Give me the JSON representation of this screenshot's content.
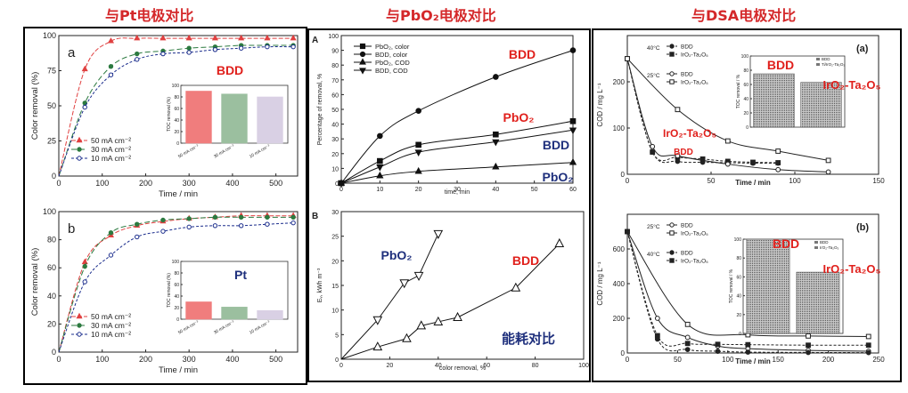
{
  "headers": {
    "left": "与Pt电极对比",
    "middle": "与PbO₂电极对比",
    "right": "与DSA电极对比"
  },
  "colors": {
    "header_red": "#d4282a",
    "c50": "#e04040",
    "c30": "#2c7a40",
    "c10": "#1a2c8c",
    "bar_red": "#f07d7d",
    "bar_green": "#9bbf9f",
    "bar_purple": "#d9d0e4",
    "bar_dsa": "#8a8a8a",
    "label_red": "#e0201c",
    "label_blue": "#1e2f7c"
  },
  "chart_data": [
    {
      "id": "pt_a",
      "type": "line",
      "panel_letter": "a",
      "xlabel": "Time / min",
      "ylabel": "Color removal (%)",
      "xlim": [
        0,
        550
      ],
      "ylim": [
        0,
        100
      ],
      "xticks": [
        "0",
        "100",
        "200",
        "300",
        "400",
        "500"
      ],
      "yticks": [
        "0",
        "25",
        "50",
        "75",
        "100"
      ],
      "series": [
        {
          "name": "50 mA cm⁻²",
          "marker": "triangle",
          "x": [
            0,
            60,
            120,
            180,
            240,
            300,
            360,
            420,
            480,
            540
          ],
          "y": [
            0,
            76,
            96,
            98,
            98,
            98,
            98,
            98,
            98,
            98
          ]
        },
        {
          "name": "30 mA cm⁻²",
          "marker": "circle",
          "x": [
            0,
            60,
            120,
            180,
            240,
            300,
            360,
            420,
            480,
            540
          ],
          "y": [
            0,
            52,
            78,
            87,
            89,
            91,
            92,
            93,
            93,
            93
          ]
        },
        {
          "name": "10 mA cm⁻²",
          "marker": "circle-open",
          "x": [
            0,
            60,
            120,
            180,
            240,
            300,
            360,
            420,
            480,
            540
          ],
          "y": [
            0,
            49,
            72,
            83,
            87,
            88,
            90,
            91,
            92,
            92
          ]
        }
      ],
      "inset": {
        "label": "BDD",
        "ylabel": "TOC removal (%)",
        "yticks": [
          "0",
          "20",
          "40",
          "60",
          "80",
          "100"
        ],
        "categories": [
          "50 mA cm⁻²",
          "30 mA cm⁻²",
          "10 mA cm⁻²"
        ],
        "values": [
          90,
          85,
          80
        ]
      }
    },
    {
      "id": "pt_b",
      "type": "line",
      "panel_letter": "b",
      "xlabel": "Time / min",
      "ylabel": "Color removal (%)",
      "xlim": [
        0,
        550
      ],
      "ylim": [
        0,
        100
      ],
      "xticks": [
        "0",
        "100",
        "200",
        "300",
        "400",
        "500"
      ],
      "yticks": [
        "0",
        "20",
        "40",
        "60",
        "80",
        "100"
      ],
      "series": [
        {
          "name": "50 mA cm⁻²",
          "marker": "triangle",
          "x": [
            0,
            60,
            120,
            180,
            240,
            300,
            360,
            420,
            480,
            540
          ],
          "y": [
            0,
            64,
            83,
            90,
            93,
            95,
            96,
            97,
            97,
            97
          ]
        },
        {
          "name": "30 mA cm⁻²",
          "marker": "circle",
          "x": [
            0,
            60,
            120,
            180,
            240,
            300,
            360,
            420,
            480,
            540
          ],
          "y": [
            0,
            61,
            85,
            91,
            94,
            95,
            96,
            96,
            96,
            96
          ]
        },
        {
          "name": "10 mA cm⁻²",
          "marker": "circle-open",
          "x": [
            0,
            60,
            120,
            180,
            240,
            300,
            360,
            420,
            480,
            540
          ],
          "y": [
            0,
            50,
            69,
            82,
            86,
            89,
            90,
            90,
            91,
            92
          ]
        }
      ],
      "inset": {
        "label": "Pt",
        "ylabel": "TOC removal (%)",
        "yticks": [
          "0",
          "20",
          "40",
          "60",
          "80",
          "100"
        ],
        "categories": [
          "50 mA cm⁻²",
          "30 mA cm⁻²",
          "10 mA cm⁻²"
        ],
        "values": [
          30,
          21,
          15
        ]
      }
    },
    {
      "id": "pbo2_A",
      "type": "line",
      "panel_letter": "A",
      "xlabel": "time, min",
      "ylabel": "Percentage of removal, %",
      "xlim": [
        0,
        60
      ],
      "ylim": [
        0,
        100
      ],
      "xticks": [
        "0",
        "10",
        "20",
        "30",
        "40",
        "50",
        "60"
      ],
      "yticks": [
        "0",
        "10",
        "20",
        "30",
        "40",
        "50",
        "60",
        "70",
        "80",
        "90",
        "100"
      ],
      "series": [
        {
          "name": "PbO₂, color",
          "marker": "square",
          "x": [
            0,
            10,
            20,
            40,
            60
          ],
          "y": [
            0,
            15,
            26,
            33,
            42
          ]
        },
        {
          "name": "BDD, color",
          "marker": "circle",
          "x": [
            0,
            10,
            20,
            40,
            60
          ],
          "y": [
            0,
            32,
            49,
            72,
            90
          ]
        },
        {
          "name": "PbO₂, COD",
          "marker": "triangle",
          "x": [
            0,
            10,
            20,
            40,
            60
          ],
          "y": [
            0,
            5,
            8,
            11,
            14
          ]
        },
        {
          "name": "BDD, COD",
          "marker": "triangle-down",
          "x": [
            0,
            10,
            20,
            40,
            60
          ],
          "y": [
            0,
            11,
            21,
            28,
            36
          ]
        }
      ],
      "labels": [
        "BDD",
        "PbO₂",
        "BDD",
        "PbO₂"
      ]
    },
    {
      "id": "pbo2_B",
      "type": "line",
      "panel_letter": "B",
      "xlabel": "color removal, %",
      "ylabel": "Eᵥ, kWh m⁻³",
      "xlim": [
        0,
        100
      ],
      "ylim": [
        0,
        30
      ],
      "xticks": [
        "0",
        "20",
        "40",
        "60",
        "80",
        "100"
      ],
      "yticks": [
        "0",
        "5",
        "10",
        "15",
        "20",
        "25",
        "30"
      ],
      "series": [
        {
          "name": "PbO₂",
          "marker": "triangle-down-open",
          "x": [
            0,
            15,
            26,
            32,
            40
          ],
          "y": [
            0,
            8,
            15.5,
            17,
            25.5
          ]
        },
        {
          "name": "BDD",
          "marker": "triangle-open",
          "x": [
            0,
            15,
            27,
            33,
            40,
            48,
            72,
            90
          ],
          "y": [
            0,
            2.5,
            4.2,
            6.8,
            7.6,
            8.5,
            14.5,
            23.5
          ]
        }
      ],
      "labels": [
        "PbO₂",
        "BDD"
      ],
      "annotation": "能耗对比"
    },
    {
      "id": "dsa_a",
      "type": "line",
      "panel_letter": "(a)",
      "xlabel": "Time / min",
      "ylabel": "COD / mg L⁻¹",
      "xlim": [
        0,
        150
      ],
      "ylim": [
        0,
        300
      ],
      "xticks": [
        "0",
        "50",
        "100",
        "150"
      ],
      "yticks": [
        "0",
        "100",
        "200"
      ],
      "legend_groups": [
        {
          "title": "40°C",
          "items": [
            "BDD",
            "IrO₂-Ta₂O₅"
          ]
        },
        {
          "title": "25°C",
          "items": [
            "BDD",
            "IrO₂-Ta₂O₅"
          ]
        }
      ],
      "series": [
        {
          "name": "BDD 40°C",
          "marker": "circle",
          "x": [
            0,
            15,
            30,
            45,
            60,
            75,
            90
          ],
          "y": [
            250,
            48,
            28,
            26,
            25,
            24,
            24
          ]
        },
        {
          "name": "IrO₂-Ta₂O₅ 40°C",
          "marker": "square",
          "x": [
            0,
            15,
            30,
            45,
            60,
            75,
            90
          ],
          "y": [
            250,
            48,
            37,
            33,
            28,
            26,
            25
          ]
        },
        {
          "name": "BDD 25°C",
          "marker": "circle-open",
          "x": [
            0,
            15,
            30,
            60,
            90,
            120
          ],
          "y": [
            250,
            60,
            40,
            22,
            10,
            5
          ]
        },
        {
          "name": "IrO₂-Ta₂O₅ 25°C",
          "marker": "square-open",
          "x": [
            0,
            30,
            60,
            90,
            120
          ],
          "y": [
            250,
            140,
            72,
            50,
            30
          ]
        }
      ],
      "inset": {
        "ylabel": "TOC removal / %",
        "yticks": [
          "0",
          "20",
          "40",
          "60",
          "80",
          "100"
        ],
        "legend": [
          "BDD",
          "Ti/IrO₂-Ta₂O₅"
        ],
        "categories": [
          "BDD",
          "IrO₂-Ta₂O₅"
        ],
        "values": [
          75,
          63
        ]
      },
      "labels": [
        "BDD",
        "IrO₂-Ta₂O₅",
        "IrO₂-Ta₂O₅",
        "BDD"
      ]
    },
    {
      "id": "dsa_b",
      "type": "line",
      "panel_letter": "(b)",
      "xlabel": "Time / min",
      "ylabel": "COD / mg L⁻¹",
      "xlim": [
        0,
        250
      ],
      "ylim": [
        0,
        800
      ],
      "xticks": [
        "0",
        "50",
        "100",
        "150",
        "200",
        "250"
      ],
      "yticks": [
        "0",
        "200",
        "400",
        "600"
      ],
      "legend_groups": [
        {
          "title": "25°C",
          "items": [
            "BDD",
            "IrO₂-Ta₂O₅"
          ]
        },
        {
          "title": "40°C",
          "items": [
            "BDD",
            "IrO₂-Ta₂O₅"
          ]
        }
      ],
      "series": [
        {
          "name": "BDD 25°C",
          "marker": "circle-open",
          "x": [
            0,
            30,
            60,
            90,
            120,
            180,
            240
          ],
          "y": [
            700,
            200,
            90,
            40,
            25,
            15,
            10
          ]
        },
        {
          "name": "IrO₂-Ta₂O₅ 25°C",
          "marker": "square-open",
          "x": [
            0,
            60,
            120,
            180,
            240
          ],
          "y": [
            700,
            165,
            105,
            98,
            95
          ]
        },
        {
          "name": "BDD 40°C",
          "marker": "circle",
          "x": [
            0,
            30,
            60,
            90,
            120,
            180,
            240
          ],
          "y": [
            700,
            80,
            20,
            10,
            5,
            3,
            2
          ]
        },
        {
          "name": "IrO₂-Ta₂O₅ 40°C",
          "marker": "square",
          "x": [
            0,
            30,
            60,
            90,
            120,
            180,
            240
          ],
          "y": [
            700,
            100,
            55,
            50,
            48,
            45,
            45
          ]
        }
      ],
      "inset": {
        "ylabel": "TOC removal / %",
        "yticks": [
          "0",
          "20",
          "40",
          "60",
          "80",
          "100"
        ],
        "legend": [
          "BDD",
          "IrO₂-Ta₂O₅"
        ],
        "categories": [
          "BDD",
          "IrO₂-Ta₂O₅"
        ],
        "values": [
          100,
          65
        ]
      },
      "labels": [
        "BDD",
        "IrO₂-Ta₂O₅"
      ]
    }
  ]
}
